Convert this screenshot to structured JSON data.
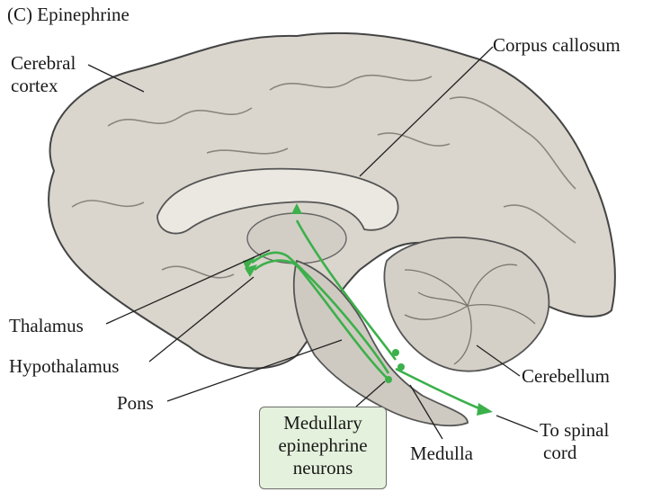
{
  "figure": {
    "panel_title": "(C)  Epinephrine"
  },
  "labels": {
    "cerebral_cortex": [
      "Cerebral",
      "cortex"
    ],
    "corpus_callosum": "Corpus callosum",
    "thalamus": "Thalamus",
    "hypothalamus": "Hypothalamus",
    "pons": "Pons",
    "cerebellum": "Cerebellum",
    "medulla": "Medulla",
    "to_spinal_cord": [
      "To spinal",
      "cord"
    ],
    "medullary_neurons": [
      "Medullary",
      "epinephrine",
      "neurons"
    ]
  },
  "colors": {
    "pathway": "#3cb04b",
    "brain_fill": "#d9d5cc",
    "brain_outline": "#4a4a4a",
    "caption_fill": "#e4f1dc"
  }
}
